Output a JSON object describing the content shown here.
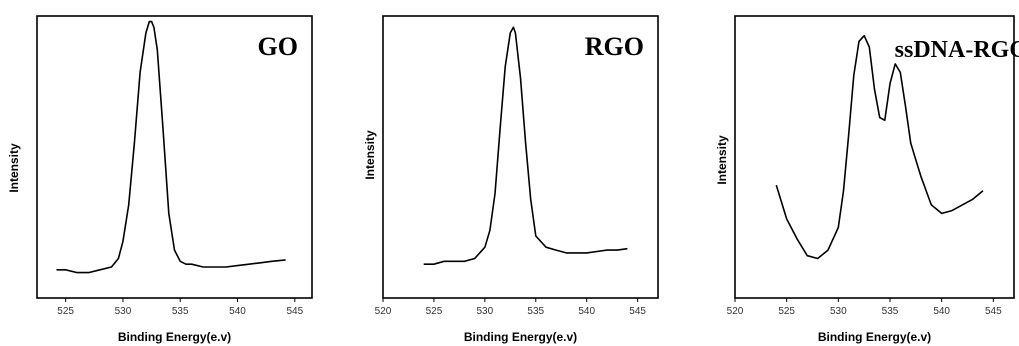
{
  "chart_data": [
    {
      "type": "line",
      "title": "GO",
      "xlabel": "Binding Energy(e.v)",
      "ylabel": "Intensity",
      "xlim": [
        522.5,
        546.5
      ],
      "ylim": [
        0,
        100
      ],
      "xticks": [
        "525",
        "530",
        "535",
        "540",
        "545"
      ],
      "show_y_ticks": false,
      "series": [
        {
          "x": [
            524.2,
            525,
            526,
            527,
            528,
            529,
            529.6,
            530,
            530.5,
            531,
            531.5,
            532,
            532.3,
            532.5,
            532.7,
            533,
            533.5,
            534,
            534.5,
            535,
            535.5,
            536,
            537,
            538,
            539,
            540,
            541,
            542,
            543,
            544.2
          ],
          "y": [
            10,
            10,
            9,
            9,
            10,
            11,
            14,
            20,
            33,
            55,
            80,
            94,
            98,
            98,
            96,
            88,
            60,
            30,
            17,
            13,
            12,
            12,
            11,
            11,
            11,
            11.5,
            12,
            12.5,
            13,
            13.5
          ]
        }
      ]
    },
    {
      "type": "line",
      "title": "RGO",
      "xlabel": "Binding Energy(e.v)",
      "ylabel": "Intensity",
      "xlim": [
        520,
        547
      ],
      "ylim": [
        0,
        100
      ],
      "xticks": [
        "520",
        "525",
        "530",
        "535",
        "540",
        "545"
      ],
      "show_y_ticks": false,
      "series": [
        {
          "x": [
            524,
            525,
            526,
            527,
            528,
            529,
            530,
            530.5,
            531,
            531.5,
            532,
            532.5,
            532.8,
            533,
            533.5,
            534,
            534.5,
            535,
            536,
            537,
            538,
            539,
            540,
            541,
            542,
            543,
            544
          ],
          "y": [
            12,
            12,
            13,
            13,
            13,
            14,
            18,
            24,
            37,
            60,
            82,
            94,
            96,
            94,
            78,
            55,
            35,
            22,
            18,
            17,
            16,
            16,
            16,
            16.5,
            17,
            17,
            17.5
          ]
        }
      ]
    },
    {
      "type": "line",
      "title": "ssDNA-RGO",
      "xlabel": "Binding Energy(e.v)",
      "ylabel": "Intensity",
      "xlim": [
        520,
        547
      ],
      "ylim": [
        0,
        100
      ],
      "xticks": [
        "520",
        "525",
        "530",
        "535",
        "540",
        "545"
      ],
      "show_y_ticks": false,
      "series": [
        {
          "x": [
            524,
            524.5,
            525,
            526,
            527,
            528,
            529,
            530,
            530.5,
            531,
            531.5,
            532,
            532.5,
            533,
            533.5,
            534,
            534.5,
            535,
            535.5,
            536,
            536.5,
            537,
            537.5,
            538,
            539,
            540,
            541,
            542,
            543,
            544
          ],
          "y": [
            40,
            34,
            28,
            21,
            15,
            14,
            17,
            25,
            38,
            58,
            79,
            91,
            93,
            89,
            74,
            64,
            63,
            76,
            83,
            80,
            68,
            55,
            49,
            43,
            33,
            30,
            31,
            33,
            35,
            38
          ]
        }
      ]
    }
  ]
}
